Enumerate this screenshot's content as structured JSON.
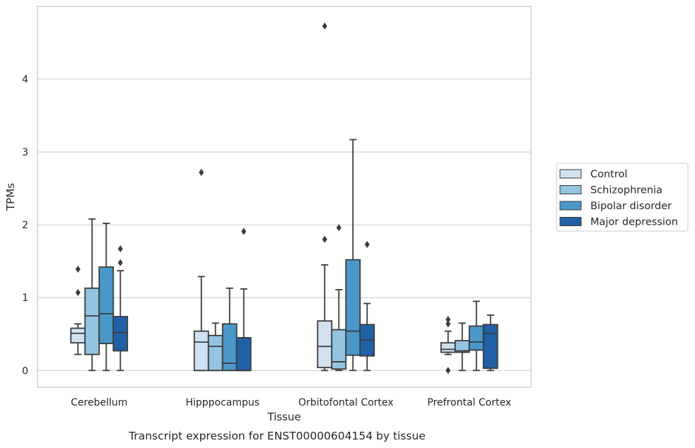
{
  "chart_data": {
    "type": "box",
    "title": "",
    "caption": "Transcript expression for ENST00000604154 by tissue",
    "xlabel": "Tissue",
    "ylabel": "TPMs",
    "ylim": [
      -0.23,
      5.0
    ],
    "yticks": [
      0,
      1,
      2,
      3,
      4
    ],
    "grid": "horizontal",
    "legend_placement": "right",
    "categories": [
      "Cerebellum",
      "Hipppocampus",
      "Orbitofontal Cortex",
      "Prefrontal Cortex"
    ],
    "series": [
      {
        "name": "Control",
        "color": "#d0e1f2",
        "boxes": [
          {
            "whislo": 0.22,
            "q1": 0.38,
            "med": 0.51,
            "q3": 0.58,
            "whishi": 0.64,
            "fliers": [
              1.07,
              1.39
            ]
          },
          {
            "whislo": 0.0,
            "q1": 0.0,
            "med": 0.39,
            "q3": 0.54,
            "whishi": 1.29,
            "fliers": [
              2.72
            ]
          },
          {
            "whislo": 0.0,
            "q1": 0.04,
            "med": 0.33,
            "q3": 0.68,
            "whishi": 1.45,
            "fliers": [
              1.8,
              4.73
            ]
          },
          {
            "whislo": 0.22,
            "q1": 0.25,
            "med": 0.29,
            "q3": 0.38,
            "whishi": 0.54,
            "fliers": [
              0.0,
              0.64,
              0.7
            ]
          }
        ]
      },
      {
        "name": "Schizophrenia",
        "color": "#94c4df",
        "boxes": [
          {
            "whislo": 0.0,
            "q1": 0.22,
            "med": 0.75,
            "q3": 1.13,
            "whishi": 2.08,
            "fliers": []
          },
          {
            "whislo": 0.0,
            "q1": 0.0,
            "med": 0.33,
            "q3": 0.48,
            "whishi": 0.65,
            "fliers": []
          },
          {
            "whislo": 0.0,
            "q1": 0.02,
            "med": 0.12,
            "q3": 0.56,
            "whishi": 1.11,
            "fliers": [
              1.96
            ]
          },
          {
            "whislo": 0.0,
            "q1": 0.25,
            "med": 0.27,
            "q3": 0.41,
            "whishi": 0.65,
            "fliers": []
          }
        ]
      },
      {
        "name": "Bipolar disorder",
        "color": "#4a98c9",
        "boxes": [
          {
            "whislo": 0.0,
            "q1": 0.37,
            "med": 0.78,
            "q3": 1.42,
            "whishi": 2.02,
            "fliers": []
          },
          {
            "whislo": 0.0,
            "q1": 0.0,
            "med": 0.1,
            "q3": 0.64,
            "whishi": 1.13,
            "fliers": []
          },
          {
            "whislo": 0.0,
            "q1": 0.21,
            "med": 0.54,
            "q3": 1.52,
            "whishi": 3.17,
            "fliers": []
          },
          {
            "whislo": 0.0,
            "q1": 0.28,
            "med": 0.39,
            "q3": 0.61,
            "whishi": 0.95,
            "fliers": []
          }
        ]
      },
      {
        "name": "Major depression",
        "color": "#2060a7",
        "boxes": [
          {
            "whislo": 0.0,
            "q1": 0.27,
            "med": 0.52,
            "q3": 0.74,
            "whishi": 1.37,
            "fliers": [
              1.48,
              1.67
            ]
          },
          {
            "whislo": 0.0,
            "q1": 0.0,
            "med": 0.0,
            "q3": 0.45,
            "whishi": 1.12,
            "fliers": [
              1.91
            ]
          },
          {
            "whislo": 0.0,
            "q1": 0.2,
            "med": 0.42,
            "q3": 0.63,
            "whishi": 0.92,
            "fliers": [
              1.73
            ]
          },
          {
            "whislo": 0.0,
            "q1": 0.03,
            "med": 0.51,
            "q3": 0.63,
            "whishi": 0.76,
            "fliers": []
          }
        ]
      }
    ]
  }
}
